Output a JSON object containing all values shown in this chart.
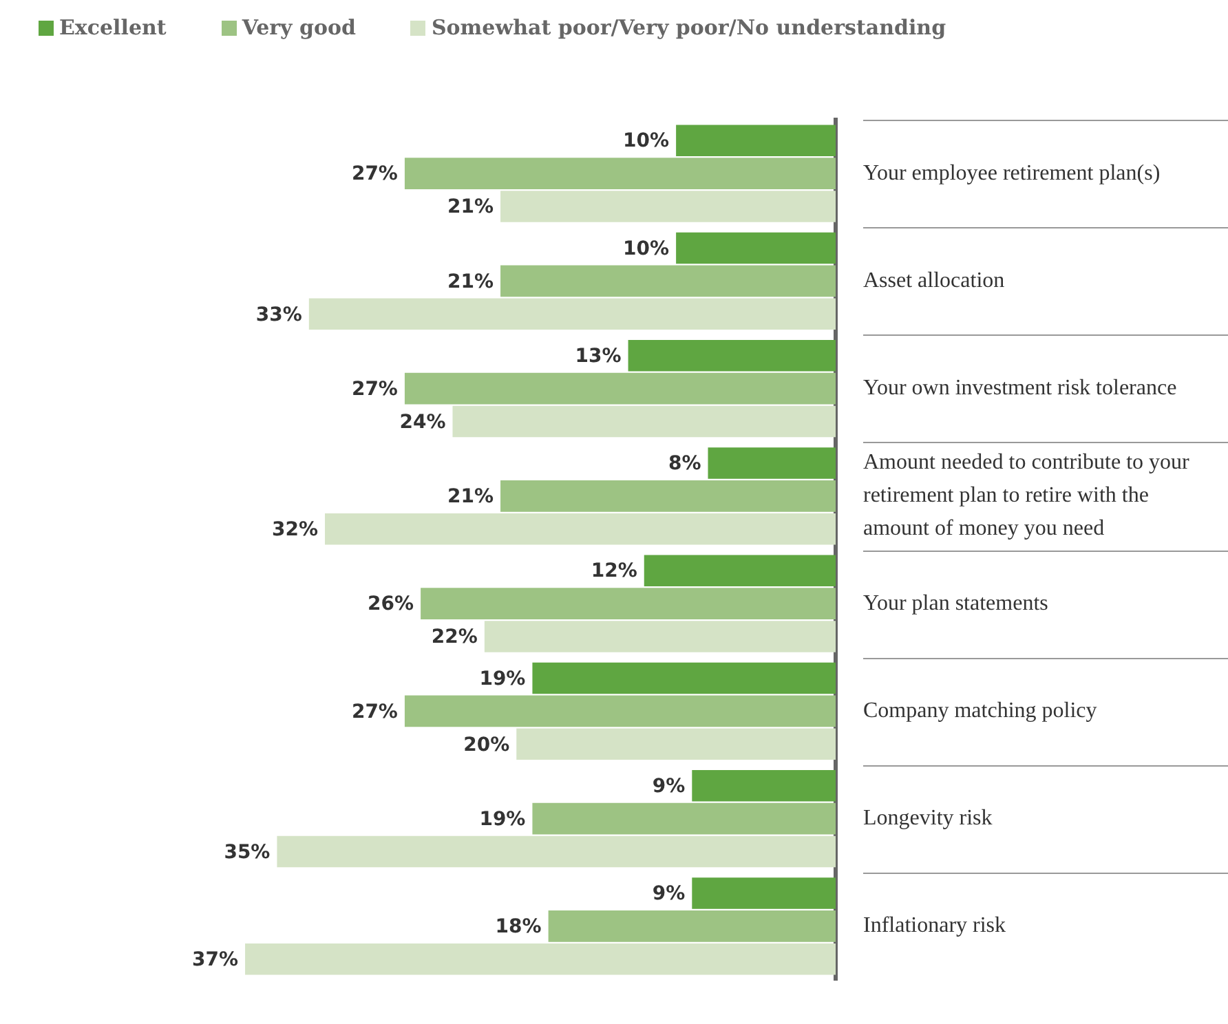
{
  "chart_data": {
    "type": "bar",
    "orientation": "horizontal",
    "legend": "top left",
    "categories": [
      "Your employee retirement plan(s)",
      "Asset allocation",
      "Your own investment risk tolerance",
      "Amount needed to contribute to your retirement plan to retire with the amount of money you need",
      "Your plan statements",
      "Company matching policy",
      "Longevity risk",
      "Inflationary risk"
    ],
    "series": [
      {
        "name": "Excellent",
        "color": "#5fa641",
        "values": [
          10,
          10,
          13,
          8,
          12,
          19,
          9,
          9
        ],
        "value_labels": [
          "10%",
          "10%",
          "13%",
          "8%",
          "12%",
          "19%",
          "9%",
          "9%"
        ]
      },
      {
        "name": "Very good",
        "color": "#9dc383",
        "values": [
          27,
          21,
          27,
          21,
          26,
          27,
          19,
          18
        ],
        "value_labels": [
          "27%",
          "21%",
          "27%",
          "21%",
          "26%",
          "27%",
          "19%",
          "18%"
        ]
      },
      {
        "name": "Somewhat poor/Very poor/No understanding",
        "color": "#d5e3c6",
        "values": [
          21,
          33,
          24,
          32,
          22,
          20,
          35,
          37
        ],
        "value_labels": [
          "21%",
          "33%",
          "24%",
          "32%",
          "22%",
          "20%",
          "35%",
          "37%"
        ]
      }
    ]
  }
}
